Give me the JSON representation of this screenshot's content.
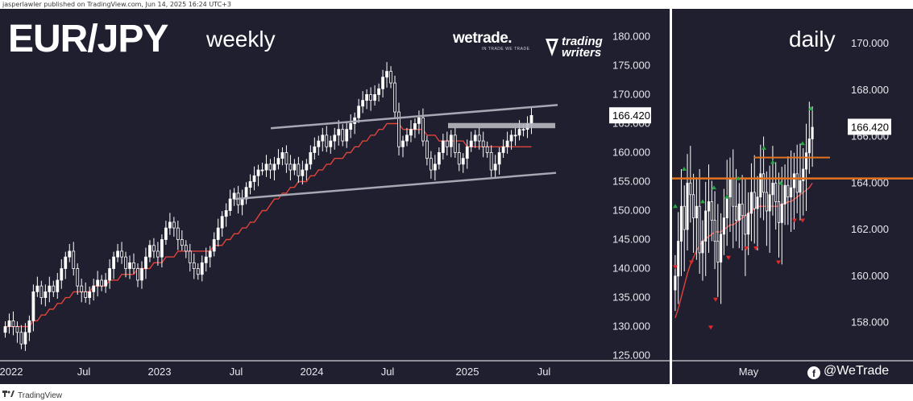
{
  "header": {
    "attribution": "jasperlawler published on TradingView.com, Jun 14, 2025 16:24 UTC+3"
  },
  "title": {
    "pair": "EUR/JPY",
    "weekly_label": "weekly",
    "daily_label": "daily"
  },
  "branding": {
    "wetrade": "wetrade.",
    "wetrade_sub": "IN TRADE WE TRADE",
    "trading_writers_line1": "trading",
    "trading_writers_line2": "writers",
    "social_handle": "@WeTrade",
    "footer": "TradingView"
  },
  "colors": {
    "background": "#1f1f30",
    "candle_up": "#ffffff",
    "candle_down": "#ffffff",
    "ma_line": "#e0433a",
    "channel": "#a8a8b4",
    "resistance_zone": "#b8b8c0",
    "daily_level": "#e3731e",
    "arrow_up": "#27a845",
    "arrow_down": "#e02a2a",
    "price_tag": "#ffffff"
  },
  "chart_data": [
    {
      "type": "candlestick",
      "name": "weekly",
      "x_ticks": [
        "2022",
        "Jul",
        "2023",
        "Jul",
        "2024",
        "Jul",
        "2025",
        "Jul"
      ],
      "y_ticks": [
        "125.000",
        "130.000",
        "135.000",
        "140.000",
        "145.000",
        "150.000",
        "155.000",
        "160.000",
        "165.000",
        "170.000",
        "175.000",
        "180.000"
      ],
      "ylim": [
        123,
        182
      ],
      "last_price": "166.420",
      "close": [
        130,
        131,
        130,
        129,
        127,
        129,
        131,
        136,
        137,
        135,
        136,
        137,
        136,
        138,
        140,
        142,
        143,
        140,
        137,
        136,
        135,
        136,
        137,
        138,
        137,
        138,
        140,
        142,
        143,
        142,
        140,
        141,
        140,
        138,
        140,
        142,
        144,
        143,
        142,
        145,
        147,
        148,
        147,
        145,
        144,
        143,
        141,
        140,
        139,
        141,
        142,
        143,
        145,
        147,
        149,
        150,
        152,
        153,
        151,
        152,
        154,
        155,
        156,
        157,
        157,
        158,
        157,
        158,
        159,
        160,
        158,
        157,
        158,
        156,
        157,
        158,
        160,
        161,
        162,
        163,
        161,
        162,
        163,
        164,
        162,
        164,
        165,
        166,
        168,
        169,
        170,
        169,
        170,
        171,
        173,
        174,
        172,
        167,
        161,
        162,
        163,
        164,
        165,
        166,
        162,
        159,
        157,
        158,
        160,
        162,
        161,
        163,
        160,
        158,
        159,
        161,
        162,
        163,
        162,
        161,
        160,
        157,
        158,
        160,
        161,
        162,
        163,
        163,
        164,
        164,
        165,
        166.4
      ],
      "open": [
        129,
        130,
        131,
        130,
        129,
        127,
        129,
        131,
        136,
        137,
        135,
        136,
        137,
        136,
        138,
        140,
        142,
        143,
        140,
        137,
        136,
        135,
        136,
        137,
        138,
        137,
        138,
        140,
        142,
        143,
        142,
        140,
        141,
        140,
        138,
        140,
        142,
        144,
        143,
        142,
        145,
        147,
        148,
        147,
        145,
        144,
        143,
        141,
        140,
        139,
        141,
        142,
        143,
        145,
        147,
        149,
        150,
        152,
        153,
        151,
        152,
        154,
        155,
        156,
        157,
        157,
        158,
        157,
        158,
        159,
        160,
        158,
        157,
        158,
        156,
        157,
        158,
        160,
        161,
        162,
        163,
        161,
        162,
        163,
        164,
        162,
        164,
        165,
        166,
        168,
        169,
        170,
        169,
        170,
        171,
        173,
        174,
        172,
        167,
        161,
        162,
        163,
        164,
        165,
        166,
        162,
        159,
        157,
        158,
        160,
        162,
        161,
        163,
        160,
        158,
        159,
        161,
        162,
        163,
        162,
        161,
        160,
        157,
        158,
        160,
        161,
        162,
        163,
        163,
        164,
        164,
        165
      ],
      "ma": [
        130,
        130,
        130,
        130,
        130,
        130,
        130,
        131,
        131,
        132,
        132,
        133,
        133,
        134,
        134,
        135,
        135,
        136,
        136,
        136,
        136,
        136,
        137,
        137,
        137,
        137,
        138,
        138,
        138,
        139,
        139,
        139,
        139,
        140,
        140,
        140,
        140,
        141,
        141,
        141,
        142,
        142,
        142,
        143,
        143,
        143,
        143,
        143,
        143,
        143,
        143,
        143,
        144,
        144,
        144,
        145,
        145,
        146,
        146,
        147,
        147,
        148,
        148,
        149,
        150,
        150,
        151,
        152,
        152,
        153,
        153,
        154,
        154,
        155,
        155,
        155,
        156,
        156,
        157,
        157,
        158,
        158,
        159,
        159,
        159,
        160,
        160,
        161,
        161,
        162,
        162,
        163,
        163,
        164,
        164,
        165,
        165,
        165,
        165,
        164,
        164,
        164,
        164,
        164,
        164,
        163,
        163,
        163,
        162,
        162,
        162,
        162,
        162,
        162,
        162,
        161,
        161,
        161,
        161,
        161,
        161,
        161,
        161,
        161,
        161,
        161,
        161,
        161,
        161,
        161,
        161,
        161
      ],
      "channel_upper": [
        [
          2023.78,
          164.2
        ],
        [
          2025.85,
          168.2
        ]
      ],
      "channel_lower": [
        [
          2023.5,
          152.0
        ],
        [
          2025.85,
          156.5
        ]
      ],
      "resistance_zone": [
        164.2,
        165.1
      ]
    },
    {
      "type": "candlestick",
      "name": "daily",
      "x_ticks": [
        "May"
      ],
      "y_ticks": [
        "158.000",
        "160.000",
        "162.000",
        "164.000",
        "166.000",
        "168.000",
        "170.000"
      ],
      "ylim": [
        156.6,
        170.8
      ],
      "last_price": "166.420",
      "levels": [
        164.2,
        165.1
      ],
      "close": [
        160,
        161.5,
        163,
        162,
        164,
        163.5,
        162.5,
        163,
        161,
        161.5,
        162.8,
        163.2,
        162.4,
        161.5,
        160.6,
        161.8,
        162.5,
        163.4,
        164.2,
        163.0,
        162.4,
        163.1,
        162.6,
        161.8,
        162.7,
        163.6,
        162.9,
        163.4,
        164.4,
        163.6,
        162.8,
        163.5,
        164.0,
        163.2,
        162.3,
        163.1,
        163.9,
        163.4,
        163.8,
        164.4,
        163.6,
        164.1,
        164.6,
        165.3,
        165.9,
        166.4
      ],
      "open": [
        159.4,
        160,
        161.5,
        163,
        162,
        164,
        163.5,
        162.5,
        163,
        161,
        161.5,
        162.8,
        163.2,
        162.4,
        161.5,
        160.6,
        161.8,
        162.5,
        163.4,
        164.2,
        163.0,
        162.4,
        163.1,
        162.6,
        161.8,
        162.7,
        163.6,
        162.9,
        163.4,
        164.4,
        163.6,
        162.8,
        163.5,
        164.0,
        163.2,
        162.3,
        163.1,
        163.9,
        163.4,
        163.8,
        164.4,
        163.6,
        164.1,
        164.6,
        165.3,
        165.9
      ],
      "ma": [
        158.2,
        158.6,
        159.1,
        159.6,
        160.1,
        160.5,
        160.8,
        161.1,
        161.3,
        161.5,
        161.6,
        161.7,
        161.8,
        161.9,
        161.9,
        161.9,
        162.0,
        162.1,
        162.2,
        162.2,
        162.3,
        162.4,
        162.5,
        162.6,
        162.7,
        162.8,
        162.9,
        163.0,
        163.0,
        163.0,
        163.0,
        163.0,
        163.0,
        163.0,
        163.0,
        163.1,
        163.1,
        163.2,
        163.2,
        163.3,
        163.4,
        163.5,
        163.6,
        163.7,
        163.8,
        164.0
      ]
    }
  ]
}
